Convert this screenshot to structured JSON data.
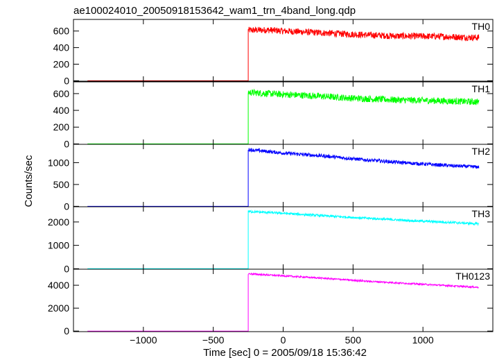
{
  "chart_data": {
    "type": "line",
    "title": "ae100024010_20050918153642_wam1_trn_4band_long.qdp",
    "xlabel": "Time [sec] 0 = 2005/09/18 15:36:42",
    "ylabel": "Counts/sec",
    "xlim": [
      -1500,
      1500
    ],
    "x_ticks": [
      -1000,
      -500,
      0,
      500,
      1000
    ],
    "x_tick_labels": [
      "−1000",
      "−500",
      "0",
      "500",
      "1000"
    ],
    "x_data_range": [
      -1400,
      1400
    ],
    "trigger_time": -250,
    "grid": false,
    "panels": [
      {
        "name": "TH0",
        "color": "#ff0000",
        "ylim": [
          -5,
          740
        ],
        "y_ticks": [
          0,
          200,
          400,
          600
        ],
        "pre_level": 0,
        "post_series": [
          {
            "t": -250,
            "v": 610
          },
          {
            "t": -100,
            "v": 612
          },
          {
            "t": 0,
            "v": 600
          },
          {
            "t": 200,
            "v": 585
          },
          {
            "t": 500,
            "v": 560
          },
          {
            "t": 800,
            "v": 540
          },
          {
            "t": 1100,
            "v": 535
          },
          {
            "t": 1400,
            "v": 520
          }
        ],
        "noise": 40
      },
      {
        "name": "TH1",
        "color": "#00ff00",
        "ylim": [
          -5,
          740
        ],
        "y_ticks": [
          0,
          200,
          400,
          600
        ],
        "pre_level": 0,
        "post_series": [
          {
            "t": -250,
            "v": 615
          },
          {
            "t": 0,
            "v": 590
          },
          {
            "t": 200,
            "v": 575
          },
          {
            "t": 500,
            "v": 545
          },
          {
            "t": 800,
            "v": 525
          },
          {
            "t": 1100,
            "v": 515
          },
          {
            "t": 1400,
            "v": 500
          }
        ],
        "noise": 40
      },
      {
        "name": "TH2",
        "color": "#0000ff",
        "ylim": [
          -10,
          1420
        ],
        "y_ticks": [
          0,
          500,
          1000
        ],
        "pre_level": 0,
        "post_series": [
          {
            "t": -250,
            "v": 1300
          },
          {
            "t": 0,
            "v": 1220
          },
          {
            "t": 300,
            "v": 1150
          },
          {
            "t": 600,
            "v": 1060
          },
          {
            "t": 900,
            "v": 990
          },
          {
            "t": 1200,
            "v": 930
          },
          {
            "t": 1400,
            "v": 900
          }
        ],
        "noise": 40
      },
      {
        "name": "TH3",
        "color": "#00ffff",
        "ylim": [
          -20,
          2650
        ],
        "y_ticks": [
          0,
          1000,
          2000
        ],
        "pre_level": 0,
        "post_series": [
          {
            "t": -250,
            "v": 2450
          },
          {
            "t": 0,
            "v": 2370
          },
          {
            "t": 300,
            "v": 2260
          },
          {
            "t": 600,
            "v": 2160
          },
          {
            "t": 900,
            "v": 2060
          },
          {
            "t": 1200,
            "v": 1980
          },
          {
            "t": 1400,
            "v": 1920
          }
        ],
        "noise": 50
      },
      {
        "name": "TH0123",
        "color": "#ff00ff",
        "ylim": [
          -50,
          5400
        ],
        "y_ticks": [
          0,
          2000,
          4000
        ],
        "pre_level": 0,
        "post_series": [
          {
            "t": -250,
            "v": 5000
          },
          {
            "t": 0,
            "v": 4820
          },
          {
            "t": 300,
            "v": 4600
          },
          {
            "t": 600,
            "v": 4350
          },
          {
            "t": 900,
            "v": 4150
          },
          {
            "t": 1200,
            "v": 3950
          },
          {
            "t": 1400,
            "v": 3820
          }
        ],
        "noise": 70
      }
    ]
  }
}
